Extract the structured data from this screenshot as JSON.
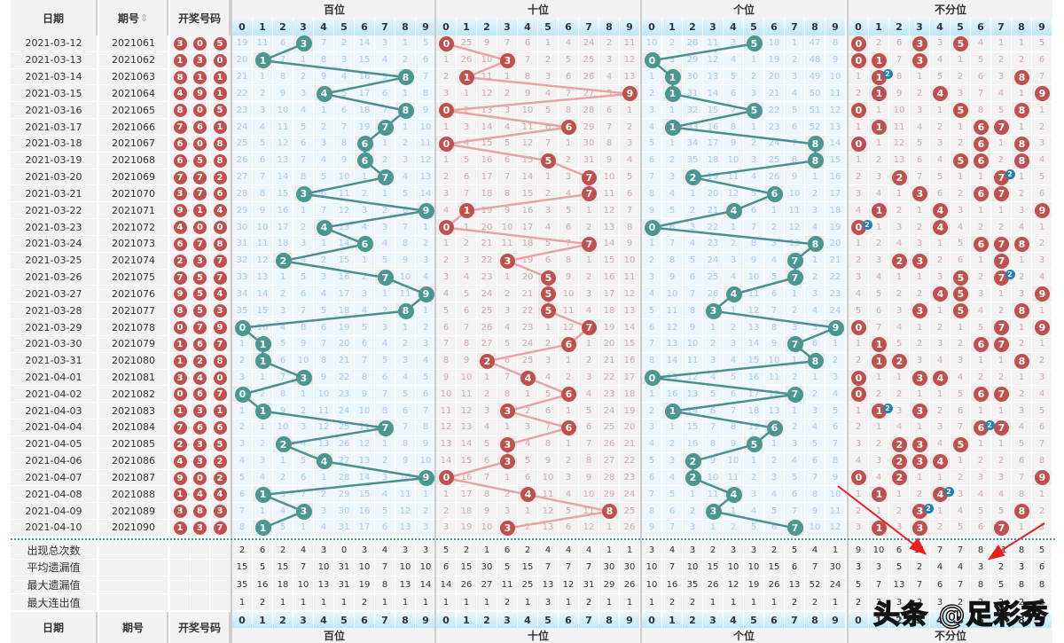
{
  "header": {
    "date_label": "日期",
    "issue_label": "期号",
    "sort_icon": "sort-updown-icon",
    "numbers_label": "开奖号码"
  },
  "groups": [
    {
      "title": "百位",
      "type": "position",
      "color": "#4a9692",
      "first_row": [
        19,
        11,
        6,
        3,
        7,
        2,
        14,
        3,
        1,
        5
      ],
      "stats": {
        "appear": [
          2,
          6,
          2,
          4,
          3,
          0,
          3,
          4,
          3,
          3
        ],
        "avg_miss": [
          15,
          5,
          15,
          7,
          10,
          31,
          10,
          7,
          10,
          10
        ],
        "max_miss": [
          35,
          16,
          18,
          10,
          13,
          31,
          19,
          8,
          13,
          14
        ],
        "max_streak": [
          1,
          2,
          1,
          1,
          1,
          1,
          2,
          1,
          1,
          1
        ]
      }
    },
    {
      "title": "十位",
      "type": "position",
      "color": "#c0504d",
      "first_row": [
        0,
        25,
        9,
        7,
        6,
        1,
        4,
        24,
        2,
        11
      ],
      "stats": {
        "appear": [
          5,
          2,
          1,
          6,
          2,
          4,
          4,
          4,
          1,
          1
        ],
        "avg_miss": [
          6,
          15,
          30,
          5,
          15,
          7,
          7,
          7,
          30,
          30
        ],
        "max_miss": [
          14,
          26,
          27,
          11,
          25,
          13,
          12,
          31,
          29,
          26
        ],
        "max_streak": [
          1,
          1,
          1,
          2,
          1,
          3,
          1,
          2,
          1,
          1
        ]
      }
    },
    {
      "title": "个位",
      "type": "position",
      "color": "#4a9692",
      "first_row": [
        10,
        2,
        28,
        11,
        3,
        5,
        18,
        1,
        47,
        8
      ],
      "stats": {
        "appear": [
          3,
          4,
          3,
          2,
          3,
          3,
          2,
          5,
          4,
          1
        ],
        "avg_miss": [
          10,
          7,
          10,
          15,
          10,
          10,
          15,
          6,
          7,
          30
        ],
        "max_miss": [
          10,
          16,
          35,
          26,
          12,
          19,
          26,
          13,
          52,
          24
        ],
        "max_streak": [
          1,
          2,
          2,
          1,
          1,
          1,
          1,
          2,
          2,
          1
        ]
      }
    },
    {
      "title": "不分位",
      "type": "any",
      "color": "#c0504d",
      "first_row": [
        0,
        2,
        6,
        3,
        3,
        5,
        4,
        1,
        1,
        5
      ],
      "stats": {
        "appear": [
          9,
          10,
          6,
          11,
          7,
          7,
          8,
          11,
          8,
          5
        ],
        "avg_miss": [
          3,
          3,
          5,
          2,
          4,
          4,
          3,
          2,
          3,
          6
        ],
        "max_miss": [
          5,
          7,
          13,
          7,
          6,
          7,
          8,
          5,
          8,
          8
        ],
        "max_streak": [
          2,
          3,
          3,
          2,
          3,
          2,
          2,
          2,
          2,
          2
        ]
      }
    }
  ],
  "digits": [
    "0",
    "1",
    "2",
    "3",
    "4",
    "5",
    "6",
    "7",
    "8",
    "9"
  ],
  "draws": [
    {
      "date": "2021-03-12",
      "issue": "2021061",
      "nums": [
        3,
        0,
        5
      ]
    },
    {
      "date": "2021-03-13",
      "issue": "2021062",
      "nums": [
        1,
        3,
        0
      ]
    },
    {
      "date": "2021-03-14",
      "issue": "2021063",
      "nums": [
        8,
        1,
        1
      ]
    },
    {
      "date": "2021-03-15",
      "issue": "2021064",
      "nums": [
        4,
        9,
        1
      ]
    },
    {
      "date": "2021-03-16",
      "issue": "2021065",
      "nums": [
        8,
        0,
        5
      ]
    },
    {
      "date": "2021-03-17",
      "issue": "2021066",
      "nums": [
        7,
        6,
        1
      ]
    },
    {
      "date": "2021-03-18",
      "issue": "2021067",
      "nums": [
        6,
        0,
        8
      ]
    },
    {
      "date": "2021-03-19",
      "issue": "2021068",
      "nums": [
        6,
        5,
        8
      ]
    },
    {
      "date": "2021-03-20",
      "issue": "2021069",
      "nums": [
        7,
        7,
        2
      ]
    },
    {
      "date": "2021-03-21",
      "issue": "2021070",
      "nums": [
        3,
        7,
        6
      ]
    },
    {
      "date": "2021-03-22",
      "issue": "2021071",
      "nums": [
        9,
        1,
        4
      ]
    },
    {
      "date": "2021-03-23",
      "issue": "2021072",
      "nums": [
        4,
        0,
        0
      ]
    },
    {
      "date": "2021-03-24",
      "issue": "2021073",
      "nums": [
        6,
        7,
        8
      ]
    },
    {
      "date": "2021-03-25",
      "issue": "2021074",
      "nums": [
        2,
        3,
        7
      ]
    },
    {
      "date": "2021-03-26",
      "issue": "2021075",
      "nums": [
        7,
        5,
        7
      ]
    },
    {
      "date": "2021-03-27",
      "issue": "2021076",
      "nums": [
        9,
        5,
        4
      ]
    },
    {
      "date": "2021-03-28",
      "issue": "2021077",
      "nums": [
        8,
        5,
        3
      ]
    },
    {
      "date": "2021-03-29",
      "issue": "2021078",
      "nums": [
        0,
        7,
        9
      ]
    },
    {
      "date": "2021-03-30",
      "issue": "2021079",
      "nums": [
        1,
        6,
        7
      ]
    },
    {
      "date": "2021-03-31",
      "issue": "2021080",
      "nums": [
        1,
        2,
        8
      ]
    },
    {
      "date": "2021-04-01",
      "issue": "2021081",
      "nums": [
        3,
        4,
        0
      ]
    },
    {
      "date": "2021-04-02",
      "issue": "2021082",
      "nums": [
        0,
        6,
        7
      ]
    },
    {
      "date": "2021-04-03",
      "issue": "2021083",
      "nums": [
        1,
        3,
        1
      ]
    },
    {
      "date": "2021-04-04",
      "issue": "2021084",
      "nums": [
        7,
        6,
        6
      ]
    },
    {
      "date": "2021-04-05",
      "issue": "2021085",
      "nums": [
        2,
        3,
        5
      ]
    },
    {
      "date": "2021-04-06",
      "issue": "2021086",
      "nums": [
        4,
        3,
        2
      ]
    },
    {
      "date": "2021-04-07",
      "issue": "2021087",
      "nums": [
        9,
        0,
        2
      ]
    },
    {
      "date": "2021-04-08",
      "issue": "2021088",
      "nums": [
        1,
        4,
        4
      ]
    },
    {
      "date": "2021-04-09",
      "issue": "2021089",
      "nums": [
        3,
        8,
        3
      ]
    },
    {
      "date": "2021-04-10",
      "issue": "2021090",
      "nums": [
        1,
        3,
        7
      ]
    }
  ],
  "stat_labels": [
    "出现总次数",
    "平均遗漏值",
    "最大遗漏值",
    "最大连出值"
  ],
  "annotation_color": "#e8201e",
  "watermark": "头条 @足彩秀"
}
